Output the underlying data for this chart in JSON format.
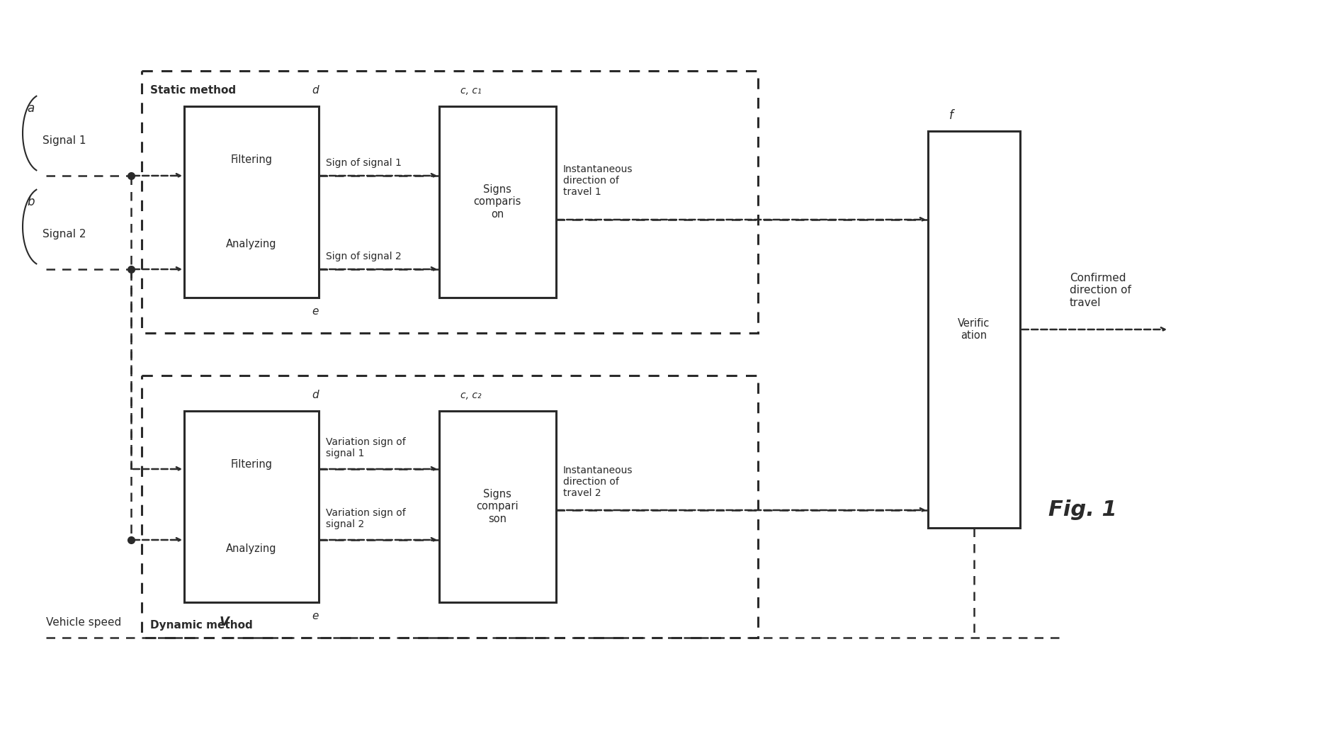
{
  "bg_color": "#ffffff",
  "line_color": "#2a2a2a",
  "fig_width": 18.62,
  "fig_height": 10.67,
  "title": "Fig. 1",
  "labels": {
    "a": "a",
    "b": "b",
    "signal1": "Signal 1",
    "signal2": "Signal 2",
    "static_method": "Static method",
    "dynamic_method": "Dynamic method",
    "filtering_top": "Filtering",
    "analyzing_top": "Analyzing",
    "filtering_bot": "Filtering",
    "analyzing_bot": "Analyzing",
    "sign_signal1": "Sign of signal 1",
    "sign_signal2": "Sign of signal 2",
    "var_sign_signal1": "Variation sign of\nsignal 1",
    "var_sign_signal2": "Variation sign of\nsignal 2",
    "signs_comp_top": "Signs\ncomparis\non",
    "signs_comp_bot": "Signs\ncompari\nson",
    "inst_dir1": "Instantaneous\ndirection of\ntravel 1",
    "inst_dir2": "Instantaneous\ndirection of\ntravel 2",
    "verification": "Verific\nation",
    "confirmed": "Confirmed\ndirection of\ntravel",
    "vehicle_speed": "Vehicle speed",
    "V": "V",
    "d_top": "d",
    "e_top": "e",
    "d_bot": "d",
    "e_bot": "e",
    "c_c1": "c, c₁",
    "c_c2": "c, c₂",
    "f": "f"
  }
}
